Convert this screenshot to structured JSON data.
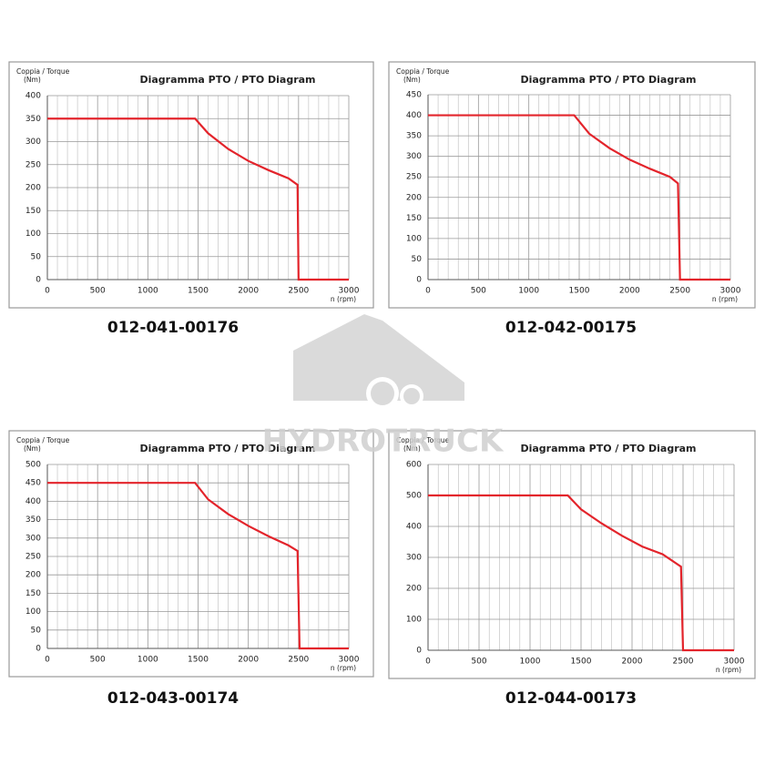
{
  "watermark": "HYDROTRUCK",
  "chart_data": [
    {
      "type": "line",
      "title": "Diagramma PTO / PTO Diagram",
      "ylabel": "Coppia / Torque",
      "yunit": "(Nm)",
      "xlabel": "n (rpm)",
      "caption": "012-041-00176",
      "x": [
        0,
        1470,
        1600,
        1800,
        2000,
        2200,
        2400,
        2490,
        2500,
        3000
      ],
      "series": [
        {
          "color": "#e3242b",
          "values": [
            350,
            350,
            318,
            284,
            258,
            238,
            220,
            206,
            0,
            0
          ]
        }
      ],
      "xlim": [
        0,
        3000
      ],
      "xticks": [
        0,
        500,
        1000,
        1500,
        2000,
        2500,
        3000
      ],
      "ylim": [
        0,
        400
      ],
      "yticks": [
        0,
        50,
        100,
        150,
        200,
        250,
        300,
        350,
        400
      ],
      "grid": true
    },
    {
      "type": "line",
      "title": "Diagramma PTO / PTO Diagram",
      "ylabel": "Coppia / Torque",
      "yunit": "(Nm)",
      "xlabel": "n (rpm)",
      "caption": "012-042-00175",
      "x": [
        0,
        1450,
        1600,
        1800,
        2000,
        2200,
        2400,
        2480,
        2500,
        3000
      ],
      "series": [
        {
          "color": "#e3242b",
          "values": [
            400,
            400,
            355,
            320,
            292,
            270,
            250,
            234,
            0,
            0
          ]
        }
      ],
      "xlim": [
        0,
        3000
      ],
      "xticks": [
        0,
        500,
        1000,
        1500,
        2000,
        2500,
        3000
      ],
      "ylim": [
        0,
        450
      ],
      "yticks": [
        0,
        50,
        100,
        150,
        200,
        250,
        300,
        350,
        400,
        450
      ],
      "grid": true
    },
    {
      "type": "line",
      "title": "Diagramma PTO / PTO Diagram",
      "ylabel": "Coppia / Torque",
      "yunit": "(Nm)",
      "xlabel": "n (rpm)",
      "caption": "012-043-00174",
      "x": [
        0,
        1470,
        1600,
        1800,
        2000,
        2200,
        2400,
        2490,
        2510,
        3000
      ],
      "series": [
        {
          "color": "#e3242b",
          "values": [
            450,
            450,
            405,
            365,
            333,
            305,
            280,
            265,
            0,
            0
          ]
        }
      ],
      "xlim": [
        0,
        3000
      ],
      "xticks": [
        0,
        500,
        1000,
        1500,
        2000,
        2500,
        3000
      ],
      "ylim": [
        0,
        500
      ],
      "yticks": [
        0,
        50,
        100,
        150,
        200,
        250,
        300,
        350,
        400,
        450,
        500
      ],
      "grid": true
    },
    {
      "type": "line",
      "title": "Diagramma PTO / PTO Diagram",
      "ylabel": "Coppia / Torque",
      "yunit": "(Nm)",
      "xlabel": "n (rpm)",
      "caption": "012-044-00173",
      "x": [
        0,
        1370,
        1500,
        1700,
        1900,
        2100,
        2300,
        2480,
        2500,
        3000
      ],
      "series": [
        {
          "color": "#e3242b",
          "values": [
            500,
            500,
            455,
            410,
            370,
            335,
            310,
            270,
            0,
            0
          ]
        }
      ],
      "xlim": [
        0,
        3000
      ],
      "xticks": [
        0,
        500,
        1000,
        1500,
        2000,
        2500,
        3000
      ],
      "ylim": [
        0,
        600
      ],
      "yticks": [
        0,
        100,
        200,
        300,
        400,
        500,
        600
      ],
      "grid": true
    }
  ]
}
